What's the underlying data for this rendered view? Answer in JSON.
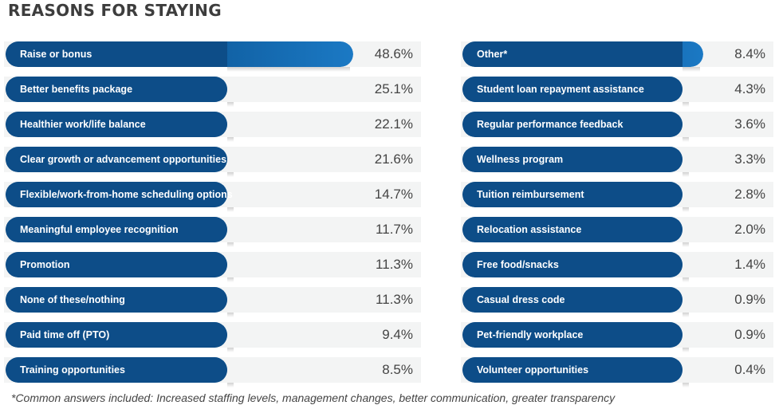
{
  "chart_data": {
    "type": "bar",
    "orientation": "horizontal",
    "title": "REASONS FOR STAYING",
    "footnote": "*Common answers included: Increased staffing levels, management changes, better communication, greater transparency",
    "colors": {
      "bar": "#0f5d9f",
      "bar_dark": "#0c4f8c",
      "bar_light": "#1b79c4",
      "row_background": "#f3f4f4",
      "value_text": "#444444"
    },
    "columns": [
      {
        "items": [
          {
            "label": "Raise or bonus",
            "value": 48.6,
            "value_label": "48.6%"
          },
          {
            "label": "Better benefits package",
            "value": 25.1,
            "value_label": "25.1%"
          },
          {
            "label": "Healthier work/life balance",
            "value": 22.1,
            "value_label": "22.1%"
          },
          {
            "label": "Clear growth or advancement opportunities",
            "value": 21.6,
            "value_label": "21.6%"
          },
          {
            "label": "Flexible/work-from-home scheduling options",
            "value": 14.7,
            "value_label": "14.7%"
          },
          {
            "label": "Meaningful employee recognition",
            "value": 11.7,
            "value_label": "11.7%"
          },
          {
            "label": "Promotion",
            "value": 11.3,
            "value_label": "11.3%"
          },
          {
            "label": "None of these/nothing",
            "value": 11.3,
            "value_label": "11.3%"
          },
          {
            "label": "Paid time off (PTO)",
            "value": 9.4,
            "value_label": "9.4%"
          },
          {
            "label": "Training opportunities",
            "value": 8.5,
            "value_label": "8.5%"
          }
        ]
      },
      {
        "items": [
          {
            "label": "Other*",
            "value": 8.4,
            "value_label": "8.4%"
          },
          {
            "label": "Student loan repayment assistance",
            "value": 4.3,
            "value_label": "4.3%"
          },
          {
            "label": "Regular performance feedback",
            "value": 3.6,
            "value_label": "3.6%"
          },
          {
            "label": "Wellness program",
            "value": 3.3,
            "value_label": "3.3%"
          },
          {
            "label": "Tuition reimbursement",
            "value": 2.8,
            "value_label": "2.8%"
          },
          {
            "label": "Relocation assistance",
            "value": 2.0,
            "value_label": "2.0%"
          },
          {
            "label": "Free food/snacks",
            "value": 1.4,
            "value_label": "1.4%"
          },
          {
            "label": "Casual dress code",
            "value": 0.9,
            "value_label": "0.9%"
          },
          {
            "label": "Pet-friendly workplace",
            "value": 0.9,
            "value_label": "0.9%"
          },
          {
            "label": "Volunteer opportunities",
            "value": 0.4,
            "value_label": "0.4%"
          }
        ]
      }
    ]
  }
}
